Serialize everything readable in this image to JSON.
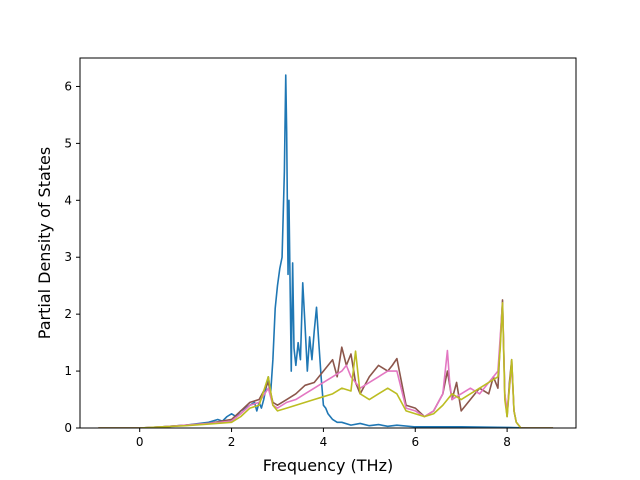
{
  "chart_data": {
    "type": "line",
    "title": "",
    "xlabel": "Frequency (THz)",
    "ylabel": "Partial Density of States",
    "xlim": [
      -1.3,
      9.5
    ],
    "ylim": [
      0,
      6.5
    ],
    "xticks": [
      0,
      2,
      4,
      6,
      8
    ],
    "yticks": [
      0,
      1,
      2,
      3,
      4,
      5,
      6
    ],
    "grid": false,
    "legend": "none",
    "series": [
      {
        "color": "#1f77b4",
        "x": [
          -0.9,
          0.0,
          0.5,
          1.0,
          1.5,
          1.7,
          1.8,
          1.9,
          2.0,
          2.1,
          2.2,
          2.3,
          2.4,
          2.5,
          2.55,
          2.6,
          2.65,
          2.7,
          2.75,
          2.8,
          2.85,
          2.9,
          2.95,
          3.0,
          3.05,
          3.1,
          3.15,
          3.18,
          3.2,
          3.23,
          3.25,
          3.28,
          3.3,
          3.33,
          3.36,
          3.4,
          3.45,
          3.5,
          3.55,
          3.6,
          3.65,
          3.7,
          3.75,
          3.8,
          3.85,
          3.9,
          3.95,
          4.0,
          4.05,
          4.1,
          4.2,
          4.3,
          4.4,
          4.6,
          4.8,
          5.0,
          5.2,
          5.4,
          5.6,
          6.0,
          7.0,
          8.0,
          8.5,
          9.0
        ],
        "y": [
          0,
          0.0,
          0.02,
          0.05,
          0.1,
          0.15,
          0.12,
          0.2,
          0.25,
          0.2,
          0.3,
          0.35,
          0.4,
          0.45,
          0.3,
          0.45,
          0.35,
          0.5,
          0.7,
          0.9,
          0.6,
          1.2,
          2.1,
          2.5,
          2.8,
          3.0,
          4.5,
          6.2,
          5.2,
          2.7,
          4.0,
          2.2,
          1.0,
          2.9,
          1.4,
          1.1,
          1.5,
          1.2,
          2.55,
          1.8,
          1.0,
          1.6,
          1.2,
          1.7,
          2.12,
          1.5,
          0.9,
          0.4,
          0.35,
          0.25,
          0.15,
          0.1,
          0.1,
          0.05,
          0.08,
          0.04,
          0.06,
          0.03,
          0.05,
          0.02,
          0.02,
          0.01,
          0.0,
          0.0
        ]
      },
      {
        "color": "#8c564b",
        "x": [
          -0.9,
          0.0,
          0.5,
          1.0,
          1.5,
          2.0,
          2.2,
          2.4,
          2.6,
          2.8,
          2.9,
          3.0,
          3.2,
          3.4,
          3.6,
          3.8,
          4.0,
          4.2,
          4.3,
          4.4,
          4.5,
          4.6,
          4.7,
          4.8,
          5.0,
          5.2,
          5.4,
          5.5,
          5.6,
          5.8,
          6.0,
          6.2,
          6.4,
          6.6,
          6.7,
          6.8,
          6.9,
          7.0,
          7.2,
          7.4,
          7.6,
          7.7,
          7.8,
          7.85,
          7.9,
          7.95,
          8.0,
          8.05,
          8.1,
          8.15,
          8.2,
          8.3,
          9.0
        ],
        "y": [
          0,
          0.0,
          0.02,
          0.05,
          0.08,
          0.15,
          0.3,
          0.45,
          0.5,
          0.8,
          0.45,
          0.4,
          0.5,
          0.6,
          0.75,
          0.8,
          1.0,
          1.2,
          0.9,
          1.42,
          1.1,
          1.3,
          0.8,
          0.6,
          0.9,
          1.1,
          1.0,
          1.1,
          1.22,
          0.4,
          0.35,
          0.2,
          0.3,
          0.6,
          1.0,
          0.5,
          0.8,
          0.3,
          0.5,
          0.7,
          0.6,
          0.9,
          0.7,
          1.5,
          2.25,
          0.6,
          0.2,
          0.8,
          1.2,
          0.3,
          0.1,
          0.0,
          0.0
        ]
      },
      {
        "color": "#e377c2",
        "x": [
          -0.9,
          0.0,
          0.5,
          1.0,
          1.5,
          2.0,
          2.2,
          2.4,
          2.6,
          2.8,
          2.9,
          3.0,
          3.2,
          3.4,
          3.6,
          3.8,
          4.0,
          4.2,
          4.4,
          4.5,
          4.6,
          4.8,
          5.0,
          5.2,
          5.4,
          5.6,
          5.8,
          6.0,
          6.2,
          6.4,
          6.6,
          6.7,
          6.75,
          6.8,
          7.0,
          7.2,
          7.4,
          7.6,
          7.8,
          7.85,
          7.9,
          7.95,
          8.0,
          8.1,
          8.15,
          8.2,
          8.3,
          9.0
        ],
        "y": [
          0,
          0.0,
          0.02,
          0.05,
          0.08,
          0.12,
          0.25,
          0.4,
          0.45,
          0.7,
          0.4,
          0.35,
          0.45,
          0.5,
          0.6,
          0.7,
          0.8,
          0.9,
          1.0,
          1.1,
          0.9,
          0.7,
          0.8,
          0.9,
          1.0,
          1.0,
          0.35,
          0.3,
          0.2,
          0.3,
          0.6,
          1.36,
          0.8,
          0.5,
          0.6,
          0.7,
          0.6,
          0.8,
          1.0,
          1.6,
          2.2,
          0.6,
          0.3,
          1.1,
          0.3,
          0.1,
          0.0,
          0.0
        ]
      },
      {
        "color": "#bcbd22",
        "x": [
          -0.9,
          0.0,
          0.5,
          1.0,
          1.5,
          2.0,
          2.2,
          2.4,
          2.6,
          2.8,
          2.9,
          3.0,
          3.2,
          3.4,
          3.6,
          3.8,
          4.0,
          4.2,
          4.4,
          4.6,
          4.7,
          4.8,
          5.0,
          5.2,
          5.4,
          5.6,
          5.8,
          6.0,
          6.2,
          6.4,
          6.6,
          6.8,
          7.0,
          7.2,
          7.4,
          7.6,
          7.8,
          7.85,
          7.9,
          7.95,
          8.0,
          8.1,
          8.15,
          8.2,
          8.3,
          9.0
        ],
        "y": [
          0,
          0.0,
          0.02,
          0.04,
          0.07,
          0.1,
          0.2,
          0.35,
          0.4,
          0.9,
          0.4,
          0.3,
          0.35,
          0.4,
          0.45,
          0.5,
          0.55,
          0.6,
          0.7,
          0.65,
          1.35,
          0.6,
          0.5,
          0.6,
          0.7,
          0.6,
          0.3,
          0.25,
          0.2,
          0.25,
          0.4,
          0.6,
          0.5,
          0.6,
          0.7,
          0.8,
          0.9,
          1.4,
          2.2,
          0.5,
          0.2,
          1.2,
          0.3,
          0.1,
          0.0,
          0.0
        ]
      }
    ]
  }
}
